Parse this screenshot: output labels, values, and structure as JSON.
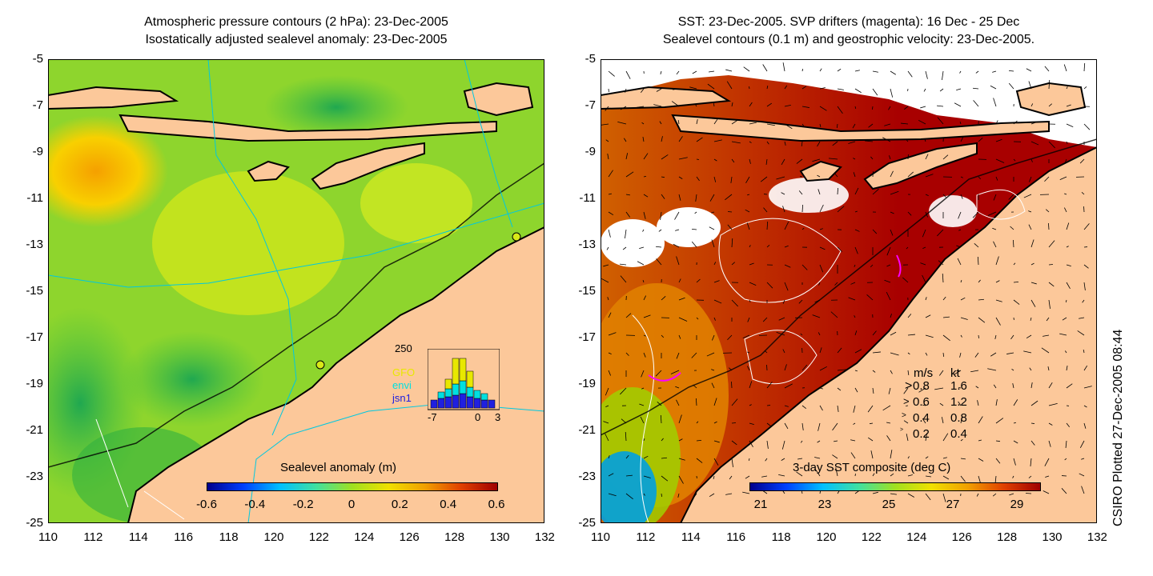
{
  "left_panel": {
    "title_line1": "Atmospheric pressure contours (2 hPa): 23-Dec-2005",
    "title_line2": "Isostatically adjusted sealevel anomaly: 23-Dec-2005",
    "colorbar_title": "Sealevel anomaly (m)",
    "colorbar_ticks": [
      "-0.6",
      "-0.4",
      "-0.2",
      "0",
      "0.2",
      "0.4",
      "0.6"
    ],
    "inset": {
      "count_label": "250",
      "series": [
        {
          "name": "GFO",
          "color": "#e8e800"
        },
        {
          "name": "envi",
          "color": "#00e0e0"
        },
        {
          "name": "jsn1",
          "color": "#2020e0"
        }
      ],
      "x_ticks": [
        "-7",
        "0",
        "3"
      ]
    }
  },
  "right_panel": {
    "title_line1": "SST: 23-Dec-2005. SVP drifters (magenta): 16 Dec - 25 Dec",
    "title_line2": "Sealevel contours (0.1 m) and geostrophic velocity: 23-Dec-2005.",
    "colorbar_title": "3-day SST composite (deg C)",
    "colorbar_ticks": [
      "21",
      "23",
      "25",
      "27",
      "29"
    ],
    "velocity_legend": {
      "header_ms": "m/s",
      "header_kt": "kt",
      "rows": [
        {
          "ms": "0.8",
          "kt": "1.6"
        },
        {
          "ms": "0.6",
          "kt": "1.2"
        },
        {
          "ms": "0.4",
          "kt": "0.8"
        },
        {
          "ms": "0.2",
          "kt": "0.4"
        }
      ]
    }
  },
  "axes": {
    "y_ticks": [
      "-5",
      "-7",
      "-9",
      "-11",
      "-13",
      "-15",
      "-17",
      "-19",
      "-21",
      "-23",
      "-25"
    ],
    "x_ticks": [
      "110",
      "112",
      "114",
      "116",
      "118",
      "120",
      "122",
      "124",
      "126",
      "128",
      "130",
      "132"
    ]
  },
  "credit": "CSIRO Plotted 27-Dec-2005 08:44",
  "colors": {
    "land": "#fcc89a",
    "sla_low": "#0000a0",
    "sla_high": "#a00000",
    "sst_warm": "#a80000",
    "drifter": "#ff00ff"
  }
}
